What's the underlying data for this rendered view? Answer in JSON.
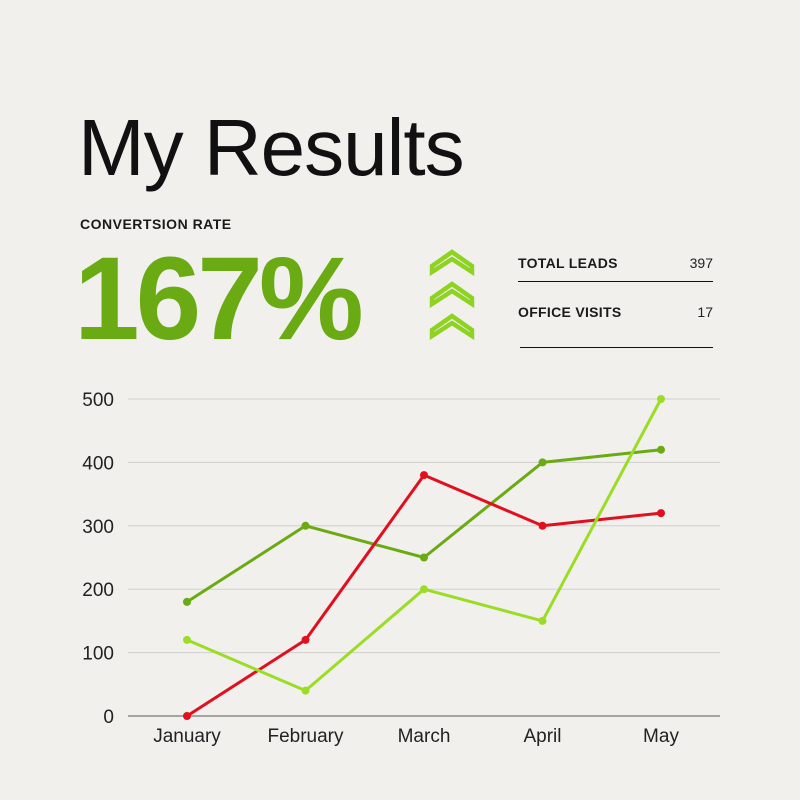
{
  "header": {
    "title": "My Results"
  },
  "metric": {
    "label": "CONVERTSION RATE",
    "value": "167%",
    "color": "#6aaa12",
    "trend_icon": "triple-chevron-up-icon",
    "trend_color": "#8fd322"
  },
  "stats": [
    {
      "label": "TOTAL LEADS",
      "value": "397"
    },
    {
      "label": "OFFICE VISITS",
      "value": "17"
    }
  ],
  "chart_data": {
    "type": "line",
    "categories": [
      "January",
      "February",
      "March",
      "April",
      "May"
    ],
    "ylim": [
      0,
      500
    ],
    "yticks": [
      "0",
      "100",
      "200",
      "300",
      "400",
      "500"
    ],
    "grid": true,
    "series": [
      {
        "color": "#6aaa12",
        "values": [
          180,
          300,
          250,
          400,
          420
        ]
      },
      {
        "color": "#e0101f",
        "values": [
          0,
          120,
          380,
          300,
          320
        ]
      },
      {
        "color": "#9bdd25",
        "values": [
          120,
          40,
          200,
          150,
          500
        ]
      }
    ]
  }
}
